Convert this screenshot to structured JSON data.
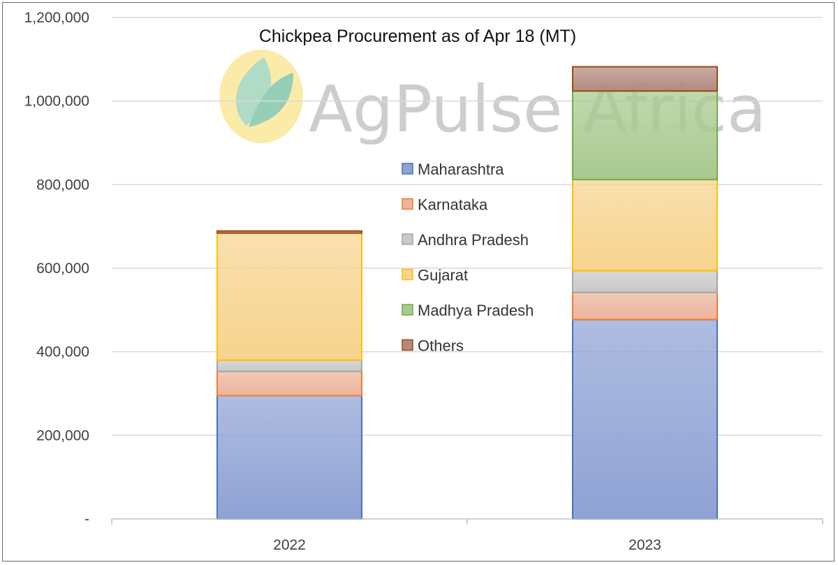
{
  "chart_data": {
    "type": "bar",
    "stacked": true,
    "title": "Chickpea  Procurement  as of Apr 18 (MT)",
    "categories": [
      "2022",
      "2023"
    ],
    "ylim": [
      0,
      1200000
    ],
    "yticks": [
      0,
      200000,
      400000,
      600000,
      800000,
      1000000,
      1200000
    ],
    "ytick_labels": [
      "-",
      "200,000",
      "400,000",
      "600,000",
      "800,000",
      "1,000,000",
      "1,200,000"
    ],
    "grid": true,
    "legend_position": "center",
    "series": [
      {
        "name": "Maharashtra",
        "values": [
          295000,
          477000
        ],
        "color": "#8FA2D4",
        "edge": "#4472C4"
      },
      {
        "name": "Karnataka",
        "values": [
          58000,
          65000
        ],
        "color": "#EDB49C",
        "edge": "#ED7D31"
      },
      {
        "name": "Andhra Pradesh",
        "values": [
          27000,
          52000
        ],
        "color": "#C9C9C9",
        "edge": "#A5A5A5"
      },
      {
        "name": "Gujarat",
        "values": [
          304000,
          218000
        ],
        "color": "#F7D48E",
        "edge": "#FFC000"
      },
      {
        "name": "Madhya Pradesh",
        "values": [
          0,
          212000
        ],
        "color": "#A8C98F",
        "edge": "#70AD47"
      },
      {
        "name": "Others",
        "values": [
          5000,
          58000
        ],
        "color": "#B38A80",
        "edge": "#9E480E"
      }
    ]
  },
  "watermark": {
    "text": "AgPulse Africa",
    "logo": "leaf-logo"
  }
}
